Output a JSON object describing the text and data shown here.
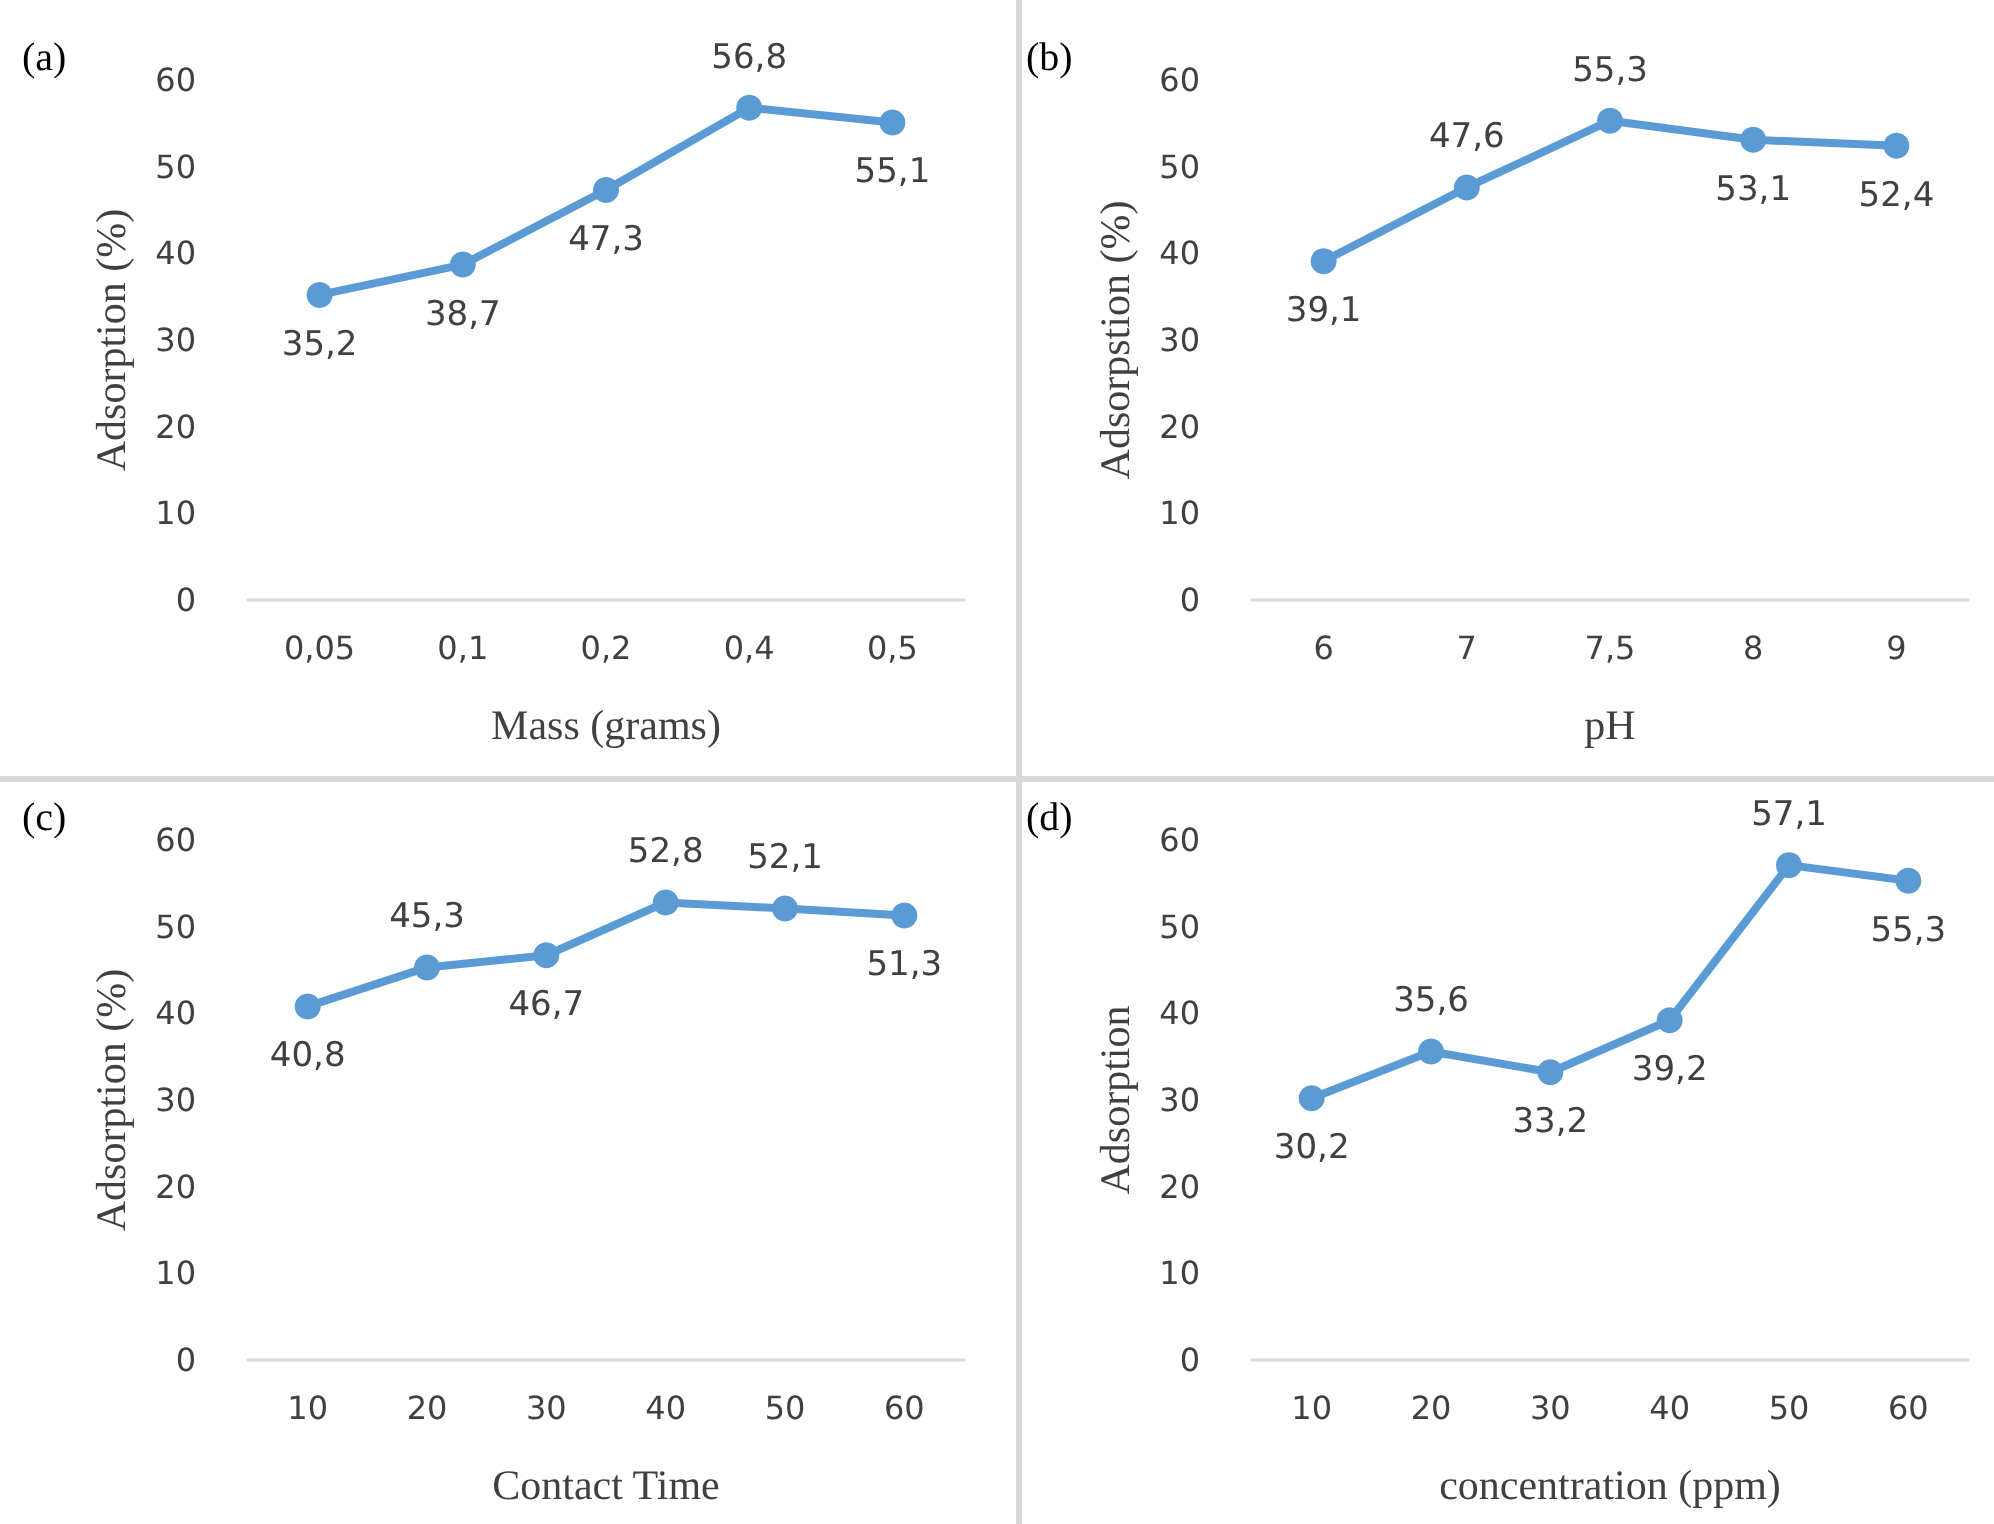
{
  "chart_data": [
    {
      "type": "line",
      "title": "(a)",
      "xlabel": "Mass (grams)",
      "ylabel": "Adsorption (%)",
      "categories": [
        "0,05",
        "0,1",
        "0,2",
        "0,4",
        "0,5"
      ],
      "ylim": [
        0,
        60
      ],
      "yticks": [
        0,
        10,
        20,
        30,
        40,
        50,
        60
      ],
      "marker": "circle",
      "line_style": "solid",
      "series": [
        {
          "color": "#5b9bd5",
          "values": [
            35.2,
            38.7,
            47.3,
            56.8,
            55.1
          ],
          "value_labels": [
            "35,2",
            "38,7",
            "47,3",
            "56,8",
            "55,1"
          ]
        }
      ]
    },
    {
      "type": "line",
      "title": "(b)",
      "xlabel": "pH",
      "ylabel": "Adsorpstion (%)",
      "categories": [
        "6",
        "7",
        "7,5",
        "8",
        "9"
      ],
      "ylim": [
        0,
        60
      ],
      "yticks": [
        0,
        10,
        20,
        30,
        40,
        50,
        60
      ],
      "marker": "circle",
      "line_style": "solid",
      "series": [
        {
          "color": "#5b9bd5",
          "values": [
            39.1,
            47.6,
            55.3,
            53.1,
            52.4
          ],
          "value_labels": [
            "39,1",
            "47,6",
            "55,3",
            "53,1",
            "52,4"
          ]
        }
      ]
    },
    {
      "type": "line",
      "title": "(c)",
      "xlabel": "Contact Time",
      "ylabel": "Adsorption (%)",
      "categories": [
        "10",
        "20",
        "30",
        "40",
        "50",
        "60"
      ],
      "ylim": [
        0,
        60
      ],
      "yticks": [
        0,
        10,
        20,
        30,
        40,
        50,
        60
      ],
      "marker": "circle",
      "line_style": "solid",
      "series": [
        {
          "color": "#5b9bd5",
          "values": [
            40.8,
            45.3,
            46.7,
            52.8,
            52.1,
            51.3
          ],
          "value_labels": [
            "40,8",
            "45,3",
            "46,7",
            "52,8",
            "52,1",
            "51,3"
          ]
        }
      ]
    },
    {
      "type": "line",
      "title": "(d)",
      "xlabel": "concentration (ppm)",
      "ylabel": "Adsorption",
      "categories": [
        "10",
        "20",
        "30",
        "40",
        "50",
        "60"
      ],
      "ylim": [
        0,
        60
      ],
      "yticks": [
        0,
        10,
        20,
        30,
        40,
        50,
        60
      ],
      "marker": "circle",
      "line_style": "solid",
      "series": [
        {
          "color": "#5b9bd5",
          "values": [
            30.2,
            35.6,
            33.2,
            39.2,
            57.1,
            55.3
          ],
          "value_labels": [
            "30,2",
            "35,6",
            "33,2",
            "39,2",
            "57,1",
            "55,3"
          ]
        }
      ]
    }
  ]
}
